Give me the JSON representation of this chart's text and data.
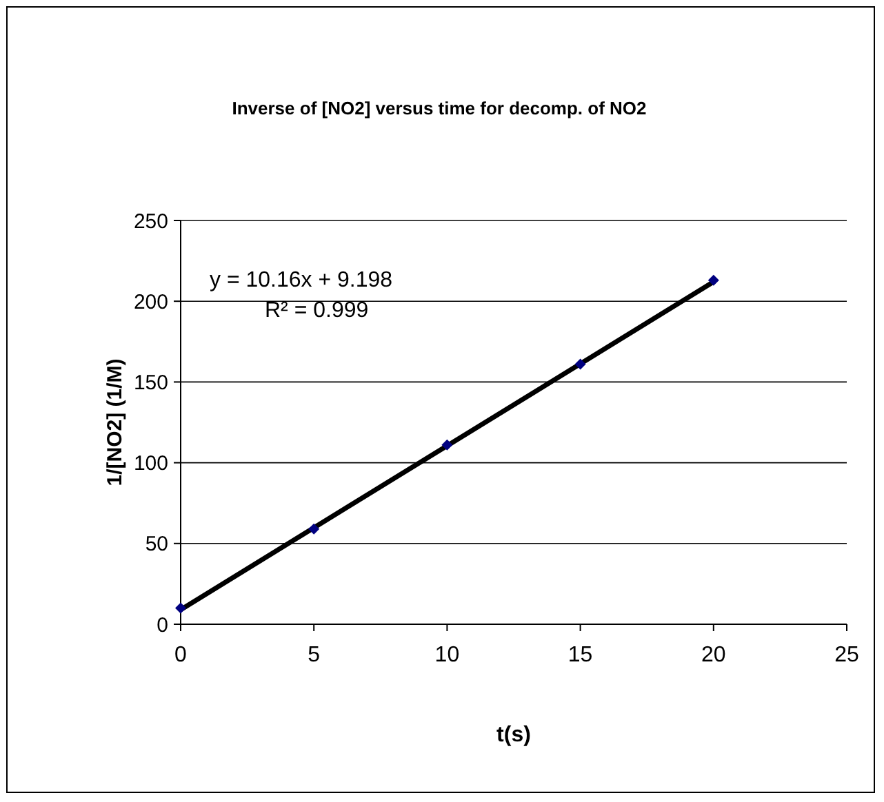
{
  "chart_data": {
    "type": "scatter",
    "title": "Inverse of [NO2] versus time for decomp. of NO2",
    "xlabel": "t(s)",
    "ylabel": "1/[NO2]  (1/M)",
    "x": [
      0,
      5,
      10,
      15,
      20
    ],
    "series": [
      {
        "color": "#000080",
        "marker": "diamond",
        "values": [
          10,
          59,
          111,
          161,
          213
        ]
      },
      {
        "type": "line",
        "color": "#000000",
        "marker": "none",
        "line_style": "solid",
        "x": [
          0,
          20
        ],
        "values": [
          9,
          212
        ]
      }
    ],
    "annotations": [
      "y = 10.16x + 9.198",
      "R² = 0.999"
    ],
    "xlim": [
      0,
      25
    ],
    "xticks": [
      0,
      5,
      10,
      15,
      20,
      25
    ],
    "ylim": [
      0,
      250
    ],
    "yticks": [
      0,
      50,
      100,
      150,
      200,
      250
    ],
    "grid": "y"
  }
}
